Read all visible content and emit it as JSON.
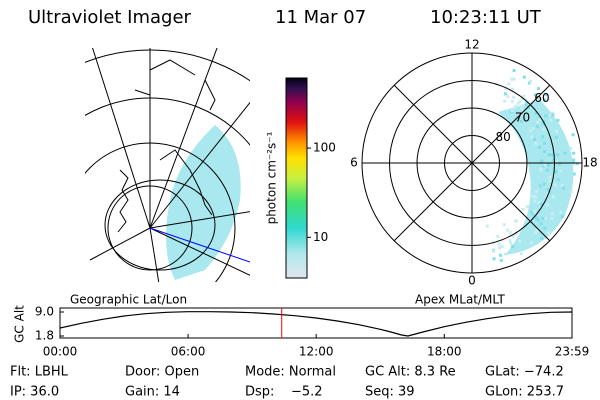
{
  "header": {
    "title": "Ultraviolet Imager",
    "date": "11 Mar 07",
    "time": "10:23:11 UT"
  },
  "map_label": "Geographic Lat/Lon",
  "colorbar": {
    "label": "photon cm⁻²s⁻¹",
    "ylim": [
      3.5,
      610
    ],
    "yticks": [
      10,
      100
    ],
    "log": true
  },
  "polar": {
    "label": "Apex MLat/MLT",
    "rlim": [
      90,
      50
    ],
    "rticks": [
      80,
      70,
      60
    ],
    "mlt_ticks": [
      12,
      18,
      6,
      0
    ]
  },
  "chart_data": {
    "type": "line",
    "ylabel": "GC Alt",
    "color": "#000000",
    "x": [
      0,
      1,
      2,
      3,
      4,
      5,
      6,
      7,
      8,
      9,
      10,
      11,
      12,
      13,
      14,
      15,
      15.5,
      16,
      16.3,
      17,
      18,
      19,
      20,
      21,
      22,
      23,
      23.983
    ],
    "values": [
      4.2,
      5.6,
      6.8,
      7.8,
      8.5,
      8.9,
      9.1,
      9.1,
      9.0,
      8.8,
      8.4,
      7.9,
      7.2,
      6.3,
      5.2,
      3.8,
      3.0,
      2.1,
      1.8,
      3.0,
      4.6,
      5.9,
      7.0,
      7.9,
      8.5,
      8.9,
      9.0
    ],
    "xlim": [
      0,
      23.983
    ],
    "ylim": [
      1.2,
      10.2
    ],
    "yticks": [
      {
        "value": 9,
        "label": "9.0"
      },
      1.8
    ],
    "xticks": [
      {
        "value": 0,
        "label": "00:00"
      },
      {
        "value": 6,
        "label": "06:00"
      },
      {
        "value": 12,
        "label": "12:00"
      },
      {
        "value": 18,
        "label": "18:00"
      },
      {
        "value": 23.983,
        "label": "23:59"
      }
    ],
    "current_time": 10.386,
    "marker_color": "#ff0000"
  },
  "footer": {
    "rows": [
      [
        "Flt: LBHL",
        "Door: Open",
        "Mode: Normal",
        "GC Alt: 8.3 Re",
        "GLat: −74.2"
      ],
      [
        "IP: 36.0",
        "Gain: 14",
        "Dsp:    −5.2",
        "Seq: 39",
        "GLon: 253.7"
      ]
    ]
  }
}
